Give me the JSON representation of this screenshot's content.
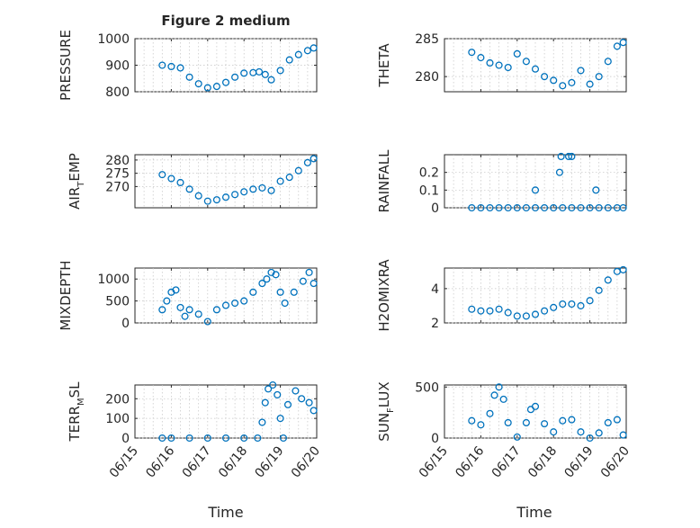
{
  "figure": {
    "title": "Figure 2 medium",
    "xlabel": "Time",
    "x_tick_labels": [
      "06/15",
      "06/16",
      "06/17",
      "06/18",
      "06/19",
      "06/20"
    ],
    "marker_color": "#0072BD",
    "axis_color": "#262626",
    "grid_color": "#c4c4c4"
  },
  "chart_data": [
    {
      "type": "scatter",
      "name": "pressure",
      "ylabel": "PRESSURE",
      "ylim": [
        800,
        1000
      ],
      "y_ticks": [
        800,
        900,
        1000
      ],
      "xlim": [
        "2019-06-15",
        "2019-06-20"
      ],
      "grid": true,
      "x": [
        "2019-06-15T18:00",
        "2019-06-16T00:00",
        "2019-06-16T06:00",
        "2019-06-16T12:00",
        "2019-06-16T18:00",
        "2019-06-17T00:00",
        "2019-06-17T06:00",
        "2019-06-17T12:00",
        "2019-06-17T18:00",
        "2019-06-18T00:00",
        "2019-06-18T06:00",
        "2019-06-18T10:00",
        "2019-06-18T14:00",
        "2019-06-18T18:00",
        "2019-06-19T00:00",
        "2019-06-19T06:00",
        "2019-06-19T12:00",
        "2019-06-19T18:00",
        "2019-06-19T22:00"
      ],
      "y": [
        900,
        895,
        890,
        855,
        830,
        815,
        820,
        835,
        855,
        870,
        872,
        875,
        865,
        845,
        880,
        920,
        940,
        955,
        965
      ]
    },
    {
      "type": "scatter",
      "name": "theta",
      "ylabel": "THETA",
      "ylim": [
        278,
        285
      ],
      "y_ticks": [
        280,
        285
      ],
      "xlim": [
        "2019-06-15",
        "2019-06-20"
      ],
      "grid": true,
      "x": [
        "2019-06-15T18:00",
        "2019-06-16T00:00",
        "2019-06-16T06:00",
        "2019-06-16T12:00",
        "2019-06-16T18:00",
        "2019-06-17T00:00",
        "2019-06-17T06:00",
        "2019-06-17T12:00",
        "2019-06-17T18:00",
        "2019-06-18T00:00",
        "2019-06-18T06:00",
        "2019-06-18T12:00",
        "2019-06-18T18:00",
        "2019-06-19T00:00",
        "2019-06-19T06:00",
        "2019-06-19T12:00",
        "2019-06-19T18:00",
        "2019-06-19T22:00"
      ],
      "y": [
        283.2,
        282.5,
        281.8,
        281.5,
        281.2,
        283.0,
        282.0,
        281.0,
        280.0,
        279.5,
        278.8,
        279.2,
        280.8,
        279.0,
        280.0,
        282.0,
        284.0,
        284.5
      ]
    },
    {
      "type": "scatter",
      "name": "air_temp",
      "ylabel": "AIR_TEMP",
      "ylim": [
        262,
        282
      ],
      "y_ticks": [
        270,
        275,
        280
      ],
      "xlim": [
        "2019-06-15",
        "2019-06-20"
      ],
      "grid": true,
      "x": [
        "2019-06-15T18:00",
        "2019-06-16T00:00",
        "2019-06-16T06:00",
        "2019-06-16T12:00",
        "2019-06-16T18:00",
        "2019-06-17T00:00",
        "2019-06-17T06:00",
        "2019-06-17T12:00",
        "2019-06-17T18:00",
        "2019-06-18T00:00",
        "2019-06-18T06:00",
        "2019-06-18T12:00",
        "2019-06-18T18:00",
        "2019-06-19T00:00",
        "2019-06-19T06:00",
        "2019-06-19T12:00",
        "2019-06-19T18:00",
        "2019-06-19T22:00"
      ],
      "y": [
        274.5,
        273.0,
        271.5,
        269.0,
        266.5,
        264.5,
        265.0,
        266.0,
        267.0,
        268.0,
        269.0,
        269.5,
        268.5,
        272.0,
        273.5,
        276.0,
        279.0,
        280.5
      ]
    },
    {
      "type": "scatter",
      "name": "rainfall",
      "ylabel": "RAINFALL",
      "ylim": [
        0,
        0.3
      ],
      "y_ticks": [
        0,
        0.1,
        0.2
      ],
      "xlim": [
        "2019-06-15",
        "2019-06-20"
      ],
      "grid": true,
      "x": [
        "2019-06-15T18:00",
        "2019-06-16T00:00",
        "2019-06-16T06:00",
        "2019-06-16T12:00",
        "2019-06-16T18:00",
        "2019-06-17T00:00",
        "2019-06-17T06:00",
        "2019-06-17T12:00",
        "2019-06-17T18:00",
        "2019-06-18T00:00",
        "2019-06-18T06:00",
        "2019-06-18T12:00",
        "2019-06-18T18:00",
        "2019-06-19T00:00",
        "2019-06-19T06:00",
        "2019-06-19T12:00",
        "2019-06-19T18:00",
        "2019-06-19T22:00",
        "2019-06-17T12:00",
        "2019-06-18T04:00",
        "2019-06-18T05:00",
        "2019-06-18T10:00",
        "2019-06-18T12:00",
        "2019-06-19T04:00"
      ],
      "y": [
        0,
        0,
        0,
        0,
        0,
        0,
        0,
        0,
        0,
        0,
        0,
        0,
        0,
        0,
        0,
        0,
        0,
        0,
        0.1,
        0.2,
        0.29,
        0.29,
        0.29,
        0.1
      ]
    },
    {
      "type": "scatter",
      "name": "mixdepth",
      "ylabel": "MIXDEPTH",
      "ylim": [
        0,
        1250
      ],
      "y_ticks": [
        0,
        500,
        1000
      ],
      "xlim": [
        "2019-06-15",
        "2019-06-20"
      ],
      "grid": true,
      "x": [
        "2019-06-15T18:00",
        "2019-06-15T21:00",
        "2019-06-16T00:00",
        "2019-06-16T03:00",
        "2019-06-16T06:00",
        "2019-06-16T09:00",
        "2019-06-16T12:00",
        "2019-06-16T18:00",
        "2019-06-17T00:00",
        "2019-06-17T06:00",
        "2019-06-17T12:00",
        "2019-06-17T18:00",
        "2019-06-18T00:00",
        "2019-06-18T06:00",
        "2019-06-18T12:00",
        "2019-06-18T15:00",
        "2019-06-18T18:00",
        "2019-06-18T21:00",
        "2019-06-19T00:00",
        "2019-06-19T03:00",
        "2019-06-19T09:00",
        "2019-06-19T15:00",
        "2019-06-19T19:00",
        "2019-06-19T22:00"
      ],
      "y": [
        300,
        500,
        700,
        750,
        350,
        150,
        300,
        200,
        30,
        300,
        400,
        450,
        500,
        700,
        900,
        1000,
        1150,
        1100,
        700,
        450,
        700,
        950,
        1150,
        900
      ]
    },
    {
      "type": "scatter",
      "name": "h2omixra",
      "ylabel": "H2OMIXRA",
      "ylim": [
        2,
        5.2
      ],
      "y_ticks": [
        2,
        4
      ],
      "xlim": [
        "2019-06-15",
        "2019-06-20"
      ],
      "grid": true,
      "x": [
        "2019-06-15T18:00",
        "2019-06-16T00:00",
        "2019-06-16T06:00",
        "2019-06-16T12:00",
        "2019-06-16T18:00",
        "2019-06-17T00:00",
        "2019-06-17T06:00",
        "2019-06-17T12:00",
        "2019-06-17T18:00",
        "2019-06-18T00:00",
        "2019-06-18T06:00",
        "2019-06-18T12:00",
        "2019-06-18T18:00",
        "2019-06-19T00:00",
        "2019-06-19T06:00",
        "2019-06-19T12:00",
        "2019-06-19T18:00",
        "2019-06-19T22:00"
      ],
      "y": [
        2.8,
        2.7,
        2.7,
        2.8,
        2.6,
        2.4,
        2.4,
        2.5,
        2.7,
        2.9,
        3.1,
        3.1,
        3.0,
        3.3,
        3.9,
        4.5,
        5.0,
        5.1
      ]
    },
    {
      "type": "scatter",
      "name": "terr_msl",
      "ylabel": "TERR_MSL",
      "ylim": [
        0,
        270
      ],
      "y_ticks": [
        0,
        100,
        200
      ],
      "xlim": [
        "2019-06-15",
        "2019-06-20"
      ],
      "grid": true,
      "x": [
        "2019-06-15T18:00",
        "2019-06-16T00:00",
        "2019-06-16T12:00",
        "2019-06-17T00:00",
        "2019-06-17T12:00",
        "2019-06-18T00:00",
        "2019-06-18T09:00",
        "2019-06-18T12:00",
        "2019-06-18T14:00",
        "2019-06-18T16:00",
        "2019-06-18T19:00",
        "2019-06-18T22:00",
        "2019-06-19T00:00",
        "2019-06-19T02:00",
        "2019-06-19T05:00",
        "2019-06-19T10:00",
        "2019-06-19T14:00",
        "2019-06-19T19:00",
        "2019-06-19T22:00"
      ],
      "y": [
        0,
        0,
        0,
        0,
        0,
        0,
        0,
        80,
        180,
        250,
        270,
        220,
        100,
        0,
        170,
        240,
        200,
        180,
        140
      ]
    },
    {
      "type": "scatter",
      "name": "sun_flux",
      "ylabel": "SUN_FLUX",
      "ylim": [
        0,
        520
      ],
      "y_ticks": [
        0,
        500
      ],
      "xlim": [
        "2019-06-15",
        "2019-06-20"
      ],
      "grid": true,
      "x": [
        "2019-06-15T18:00",
        "2019-06-16T00:00",
        "2019-06-16T06:00",
        "2019-06-16T09:00",
        "2019-06-16T12:00",
        "2019-06-16T15:00",
        "2019-06-16T18:00",
        "2019-06-17T00:00",
        "2019-06-17T06:00",
        "2019-06-17T09:00",
        "2019-06-17T12:00",
        "2019-06-17T18:00",
        "2019-06-18T00:00",
        "2019-06-18T06:00",
        "2019-06-18T12:00",
        "2019-06-18T18:00",
        "2019-06-19T00:00",
        "2019-06-19T06:00",
        "2019-06-19T12:00",
        "2019-06-19T18:00",
        "2019-06-19T22:00"
      ],
      "y": [
        170,
        130,
        240,
        420,
        500,
        380,
        150,
        10,
        150,
        280,
        310,
        140,
        60,
        170,
        180,
        60,
        0,
        50,
        150,
        180,
        30
      ]
    }
  ]
}
